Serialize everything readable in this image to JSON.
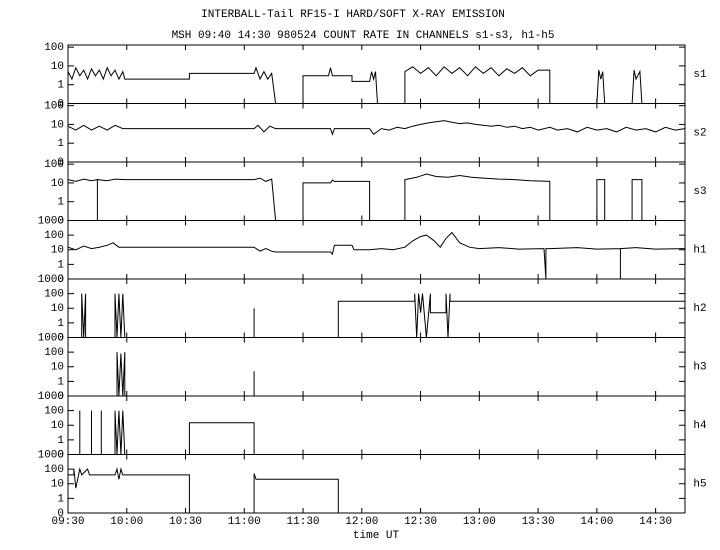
{
  "title": "INTERBALL-Tail RF15-I HARD/SOFT X-RAY EMISSION",
  "subtitle": "MSH 09:40 14:30 980524  COUNT RATE IN CHANNELS s1-s3, h1-h5",
  "xlabel": "time UT",
  "xlim": [
    "09:30",
    "14:45"
  ],
  "xticks": [
    "09:30",
    "10:00",
    "10:30",
    "11:00",
    "11:30",
    "12:00",
    "12:30",
    "13:00",
    "13:30",
    "14:00",
    "14:30"
  ],
  "chart_data": [
    {
      "type": "line",
      "label": "s1",
      "ylim": [
        0,
        130
      ],
      "yticks": [
        0,
        1,
        10,
        100
      ],
      "x": [
        "09:30",
        "09:32",
        "09:34",
        "09:36",
        "09:38",
        "09:40",
        "09:42",
        "09:44",
        "09:46",
        "09:48",
        "09:50",
        "09:52",
        "09:54",
        "09:56",
        "09:58",
        "09:59",
        "10:32",
        "10:32",
        "11:05",
        "11:06",
        "11:08",
        "11:10",
        "11:12",
        "11:14",
        "11:16",
        "11:30",
        "11:30",
        "11:43",
        "11:44",
        "11:45",
        "11:55",
        "11:55",
        "12:04",
        "12:05",
        "12:06",
        "12:07",
        "12:08",
        "12:22",
        "12:22",
        "12:26",
        "12:30",
        "12:34",
        "12:38",
        "12:42",
        "12:46",
        "12:50",
        "12:54",
        "12:58",
        "13:02",
        "13:06",
        "13:10",
        "13:14",
        "13:18",
        "13:22",
        "13:26",
        "13:30",
        "13:36",
        "13:36",
        "14:00",
        "14:01",
        "14:02",
        "14:03",
        "14:04",
        "14:18",
        "14:19",
        "14:20",
        "14:22",
        "14:23",
        "14:45"
      ],
      "values": [
        5,
        2,
        8,
        3,
        6,
        2,
        7,
        3,
        6,
        2,
        8,
        3,
        6,
        2,
        5,
        2,
        2,
        4,
        4,
        8,
        2,
        5,
        2,
        4,
        0,
        0,
        3,
        3,
        8,
        3,
        3,
        1.5,
        1.5,
        5,
        2,
        5,
        0,
        0,
        5,
        9,
        4,
        8,
        3,
        9,
        4,
        8,
        3,
        9,
        4,
        8,
        3,
        7,
        4,
        8,
        3,
        6,
        6,
        0,
        0,
        6,
        2,
        5,
        0,
        0,
        6,
        2,
        5,
        0,
        0
      ]
    },
    {
      "type": "line",
      "label": "s2",
      "ylim": [
        0,
        130
      ],
      "yticks": [
        0,
        1,
        10,
        100
      ],
      "x": [
        "09:30",
        "09:34",
        "09:38",
        "09:42",
        "09:46",
        "09:50",
        "09:54",
        "09:58",
        "09:59",
        "11:05",
        "11:07",
        "11:10",
        "11:13",
        "11:16",
        "11:44",
        "11:45",
        "11:46",
        "12:04",
        "12:06",
        "12:10",
        "12:14",
        "12:18",
        "12:22",
        "12:26",
        "12:30",
        "12:34",
        "12:38",
        "12:42",
        "12:46",
        "12:50",
        "12:54",
        "12:58",
        "13:02",
        "13:06",
        "13:10",
        "13:14",
        "13:18",
        "13:22",
        "13:26",
        "13:30",
        "13:36",
        "13:40",
        "13:45",
        "13:50",
        "13:55",
        "14:00",
        "14:05",
        "14:10",
        "14:15",
        "14:20",
        "14:25",
        "14:30",
        "14:35",
        "14:40",
        "14:45"
      ],
      "values": [
        8,
        5,
        9,
        5,
        8,
        5,
        9,
        6,
        6,
        6,
        9,
        4,
        8,
        6,
        6,
        3,
        6,
        6,
        3,
        6,
        5,
        7,
        6,
        8,
        10,
        12,
        14,
        16,
        13,
        11,
        12,
        10,
        9,
        8,
        9,
        7,
        8,
        6,
        7,
        5,
        7,
        5,
        6,
        4,
        7,
        5,
        6,
        4,
        7,
        5,
        6,
        4,
        7,
        5,
        6
      ]
    },
    {
      "type": "line",
      "label": "s3",
      "ylim": [
        0,
        130
      ],
      "yticks": [
        0,
        1,
        10,
        100
      ],
      "x": [
        "09:30",
        "09:34",
        "09:38",
        "09:42",
        "09:45",
        "09:45",
        "09:45",
        "09:50",
        "09:54",
        "09:59",
        "11:05",
        "11:08",
        "11:11",
        "11:14",
        "11:16",
        "11:30",
        "11:30",
        "11:44",
        "11:45",
        "11:46",
        "12:04",
        "12:04",
        "12:22",
        "12:22",
        "12:28",
        "12:33",
        "12:38",
        "12:44",
        "12:50",
        "12:56",
        "13:02",
        "13:10",
        "13:18",
        "13:26",
        "13:36",
        "13:36",
        "14:00",
        "14:00",
        "14:04",
        "14:04",
        "14:18",
        "14:18",
        "14:23",
        "14:23",
        "14:45"
      ],
      "values": [
        15,
        12,
        16,
        13,
        15,
        0,
        15,
        13,
        16,
        15,
        15,
        18,
        12,
        16,
        0,
        0,
        10,
        10,
        14,
        12,
        12,
        0,
        0,
        15,
        20,
        30,
        22,
        20,
        25,
        20,
        18,
        16,
        15,
        13,
        12,
        0,
        0,
        15,
        15,
        0,
        0,
        15,
        15,
        0,
        0
      ]
    },
    {
      "type": "line",
      "label": "h1",
      "ylim": [
        0,
        1000
      ],
      "yticks": [
        0,
        1,
        10,
        100,
        1000
      ],
      "x": [
        "09:30",
        "09:34",
        "09:38",
        "09:42",
        "09:46",
        "09:50",
        "09:53",
        "09:56",
        "09:59",
        "11:05",
        "11:08",
        "11:11",
        "11:14",
        "11:16",
        "11:44",
        "11:45",
        "11:46",
        "11:55",
        "11:56",
        "12:04",
        "12:10",
        "12:16",
        "12:22",
        "12:26",
        "12:30",
        "12:33",
        "12:37",
        "12:40",
        "12:43",
        "12:46",
        "12:50",
        "12:55",
        "13:00",
        "13:10",
        "13:20",
        "13:33",
        "13:34",
        "13:34",
        "13:36",
        "13:50",
        "14:00",
        "14:12",
        "14:12",
        "14:12",
        "14:20",
        "14:30",
        "14:45"
      ],
      "values": [
        15,
        10,
        18,
        12,
        15,
        20,
        30,
        15,
        15,
        15,
        8,
        12,
        8,
        7,
        7,
        5,
        20,
        20,
        10,
        10,
        12,
        10,
        15,
        40,
        80,
        100,
        40,
        15,
        60,
        150,
        30,
        15,
        12,
        14,
        11,
        12,
        0,
        12,
        12,
        14,
        11,
        12,
        0,
        12,
        14,
        11,
        12
      ]
    },
    {
      "type": "line",
      "label": "h2",
      "ylim": [
        0,
        1000
      ],
      "yticks": [
        0,
        1,
        10,
        100,
        1000
      ],
      "x": [
        "09:30",
        "09:37",
        "09:37",
        "09:38",
        "09:39",
        "09:39",
        "09:54",
        "09:54",
        "09:55",
        "09:56",
        "09:57",
        "09:58",
        "09:59",
        "11:05",
        "11:05",
        "11:05",
        "11:48",
        "11:48",
        "12:27",
        "12:27",
        "12:28",
        "12:29",
        "12:30",
        "12:31",
        "12:33",
        "12:35",
        "12:35",
        "12:43",
        "12:43",
        "12:44",
        "12:45",
        "12:45",
        "14:45"
      ],
      "values": [
        0,
        0,
        100,
        0,
        100,
        0,
        0,
        100,
        0,
        100,
        0,
        100,
        0,
        0,
        10,
        0,
        0,
        30,
        30,
        100,
        0,
        100,
        5,
        100,
        0,
        100,
        5,
        5,
        100,
        0,
        100,
        30,
        30
      ]
    },
    {
      "type": "line",
      "label": "h3",
      "ylim": [
        0,
        1000
      ],
      "yticks": [
        0,
        1,
        10,
        100,
        1000
      ],
      "x": [
        "09:30",
        "09:55",
        "09:55",
        "09:56",
        "09:57",
        "09:58",
        "09:59",
        "09:59",
        "11:05",
        "11:05",
        "11:05",
        "14:45"
      ],
      "values": [
        0,
        0,
        100,
        0,
        80,
        0,
        100,
        0,
        0,
        5,
        0,
        0
      ]
    },
    {
      "type": "line",
      "label": "h4",
      "ylim": [
        0,
        1000
      ],
      "yticks": [
        0,
        1,
        10,
        100,
        1000
      ],
      "x": [
        "09:30",
        "09:36",
        "09:36",
        "09:36",
        "09:42",
        "09:42",
        "09:42",
        "09:47",
        "09:47",
        "09:47",
        "09:54",
        "09:54",
        "09:55",
        "09:56",
        "09:57",
        "09:58",
        "09:59",
        "10:32",
        "10:32",
        "11:05",
        "11:05",
        "14:45"
      ],
      "values": [
        0,
        0,
        100,
        0,
        0,
        100,
        0,
        0,
        100,
        0,
        0,
        100,
        0,
        100,
        0,
        100,
        0,
        0,
        15,
        15,
        0,
        0
      ]
    },
    {
      "type": "line",
      "label": "h5",
      "ylim": [
        0,
        1000
      ],
      "yticks": [
        0,
        1,
        10,
        100,
        1000
      ],
      "x": [
        "09:30",
        "09:30",
        "09:33",
        "09:33",
        "09:34",
        "09:36",
        "09:37",
        "09:40",
        "09:41",
        "09:54",
        "09:55",
        "09:56",
        "09:57",
        "09:58",
        "10:32",
        "10:32",
        "11:05",
        "11:05",
        "11:06",
        "11:48",
        "11:48",
        "14:45"
      ],
      "values": [
        0,
        40,
        40,
        100,
        5,
        100,
        40,
        100,
        40,
        40,
        100,
        20,
        100,
        40,
        40,
        0,
        0,
        50,
        20,
        20,
        0,
        0
      ]
    }
  ]
}
